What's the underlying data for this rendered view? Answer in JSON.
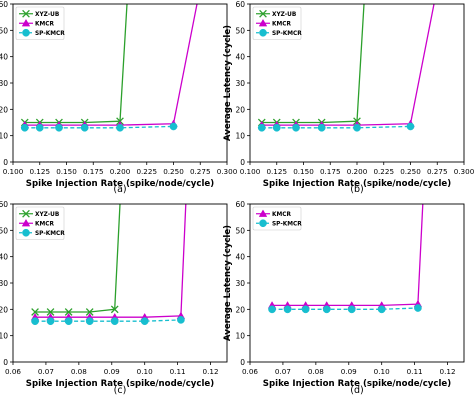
{
  "chart_data": [
    {
      "type": "line",
      "panel_label": "(a)",
      "xlabel": "Spike Injection Rate (spike/node/cycle)",
      "ylabel": "Average Latency (cycle)",
      "xlim": [
        0.1,
        0.3
      ],
      "ylim": [
        0,
        60
      ],
      "xticks": [
        "0.100",
        "0.125",
        "0.150",
        "0.175",
        "0.200",
        "0.225",
        "0.250",
        "0.275",
        "0.300"
      ],
      "yticks": [
        "0",
        "10",
        "20",
        "30",
        "40",
        "50",
        "60"
      ],
      "legend_position": "top-left",
      "series": [
        {
          "name": "XYZ-UB",
          "color": "#2ca02c",
          "marker": "x",
          "linestyle": "solid",
          "x": [
            0.111,
            0.125,
            0.143,
            0.167,
            0.2,
            0.2065
          ],
          "y": [
            15,
            15,
            15,
            15,
            15.5,
            60
          ]
        },
        {
          "name": "KMCR",
          "color": "#cc00cc",
          "marker": "triangle",
          "linestyle": "solid",
          "x": [
            0.111,
            0.125,
            0.143,
            0.167,
            0.2,
            0.25,
            0.272
          ],
          "y": [
            14,
            14,
            14,
            14,
            14,
            14.5,
            60
          ]
        },
        {
          "name": "SP-KMCR",
          "color": "#17becf",
          "marker": "circle",
          "linestyle": "dashed",
          "x": [
            0.111,
            0.125,
            0.143,
            0.167,
            0.2,
            0.25
          ],
          "y": [
            13,
            13,
            13,
            13,
            13,
            13.5
          ]
        }
      ]
    },
    {
      "type": "line",
      "panel_label": "(b)",
      "xlabel": "Spike Injection Rate (spike/node/cycle)",
      "ylabel": "Average Latency (cycle)",
      "xlim": [
        0.1,
        0.3
      ],
      "ylim": [
        0,
        60
      ],
      "xticks": [
        "0.100",
        "0.125",
        "0.150",
        "0.175",
        "0.200",
        "0.225",
        "0.250",
        "0.275",
        "0.300"
      ],
      "yticks": [
        "0",
        "10",
        "20",
        "30",
        "40",
        "50",
        "60"
      ],
      "legend_position": "top-left",
      "series": [
        {
          "name": "XYZ-UB",
          "color": "#2ca02c",
          "marker": "x",
          "linestyle": "solid",
          "x": [
            0.111,
            0.125,
            0.143,
            0.167,
            0.2,
            0.2065
          ],
          "y": [
            15,
            15,
            15,
            15,
            15.5,
            60
          ]
        },
        {
          "name": "KMCR",
          "color": "#cc00cc",
          "marker": "triangle",
          "linestyle": "solid",
          "x": [
            0.111,
            0.125,
            0.143,
            0.167,
            0.2,
            0.25,
            0.272
          ],
          "y": [
            14,
            14,
            14,
            14,
            14,
            14.5,
            60
          ]
        },
        {
          "name": "SP-KMCR",
          "color": "#17becf",
          "marker": "circle",
          "linestyle": "dashed",
          "x": [
            0.111,
            0.125,
            0.143,
            0.167,
            0.2,
            0.25
          ],
          "y": [
            13,
            13,
            13,
            13,
            13,
            13.5
          ]
        }
      ]
    },
    {
      "type": "line",
      "panel_label": "(c)",
      "xlabel": "Spike Injection Rate (spike/node/cycle)",
      "ylabel": "Average Latency (cycle)",
      "xlim": [
        0.06,
        0.125
      ],
      "ylim": [
        0,
        60
      ],
      "xticks": [
        "0.06",
        "0.07",
        "0.08",
        "0.09",
        "0.10",
        "0.11",
        "0.12"
      ],
      "yticks": [
        "0",
        "10",
        "20",
        "30",
        "40",
        "50",
        "60"
      ],
      "legend_position": "top-left",
      "series": [
        {
          "name": "XYZ-UB",
          "color": "#2ca02c",
          "marker": "x",
          "linestyle": "solid",
          "x": [
            0.0667,
            0.0714,
            0.0769,
            0.0833,
            0.0909,
            0.0925
          ],
          "y": [
            19,
            19,
            19,
            19,
            20,
            60
          ]
        },
        {
          "name": "KMCR",
          "color": "#cc00cc",
          "marker": "triangle",
          "linestyle": "solid",
          "x": [
            0.0667,
            0.0714,
            0.0769,
            0.0833,
            0.0909,
            0.1,
            0.111,
            0.1125
          ],
          "y": [
            17,
            17,
            17,
            17,
            17,
            17,
            17.5,
            60
          ]
        },
        {
          "name": "SP-KMCR",
          "color": "#17becf",
          "marker": "circle",
          "linestyle": "dashed",
          "x": [
            0.0667,
            0.0714,
            0.0769,
            0.0833,
            0.0909,
            0.1,
            0.111
          ],
          "y": [
            15.5,
            15.5,
            15.5,
            15.5,
            15.5,
            15.5,
            16
          ]
        }
      ]
    },
    {
      "type": "line",
      "panel_label": "(d)",
      "xlabel": "Spike Injection Rate (spike/node/cycle)",
      "ylabel": "Average Latency (cycle)",
      "xlim": [
        0.06,
        0.125
      ],
      "ylim": [
        0,
        60
      ],
      "xticks": [
        "0.06",
        "0.07",
        "0.08",
        "0.09",
        "0.10",
        "0.11",
        "0.12"
      ],
      "yticks": [
        "0",
        "10",
        "20",
        "30",
        "40",
        "50",
        "60"
      ],
      "legend_position": "top-left",
      "series": [
        {
          "name": "KMCR",
          "color": "#cc00cc",
          "marker": "triangle",
          "linestyle": "solid",
          "x": [
            0.0667,
            0.0714,
            0.0769,
            0.0833,
            0.0909,
            0.1,
            0.111,
            0.1125
          ],
          "y": [
            21.5,
            21.5,
            21.5,
            21.5,
            21.5,
            21.5,
            22,
            60
          ]
        },
        {
          "name": "SP-KMCR",
          "color": "#17becf",
          "marker": "circle",
          "linestyle": "dashed",
          "x": [
            0.0667,
            0.0714,
            0.0769,
            0.0833,
            0.0909,
            0.1,
            0.111
          ],
          "y": [
            20,
            20,
            20,
            20,
            20,
            20,
            20.5
          ]
        }
      ]
    }
  ]
}
